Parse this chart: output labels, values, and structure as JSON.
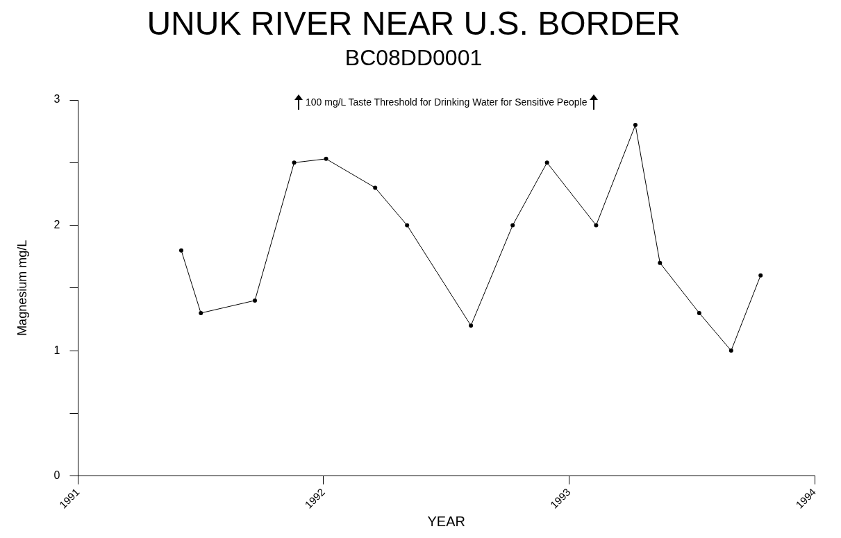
{
  "chart_data": {
    "type": "line",
    "title": "UNUK RIVER NEAR U.S. BORDER",
    "subtitle": "BC08DD0001",
    "xlabel": "YEAR",
    "ylabel": "Magnesium mg/L",
    "annotations": [
      "100 mg/L Taste Threshold for Drinking Water for Sensitive People"
    ],
    "x": [
      1991.42,
      1991.5,
      1991.72,
      1991.88,
      1992.01,
      1992.21,
      1992.34,
      1992.6,
      1992.77,
      1992.91,
      1993.11,
      1993.27,
      1993.37,
      1993.53,
      1993.66,
      1993.78
    ],
    "series": [
      {
        "color": "#000000",
        "values": [
          1.8,
          1.3,
          1.4,
          2.5,
          2.53,
          2.3,
          2.0,
          1.2,
          2.0,
          2.5,
          2.0,
          2.8,
          1.7,
          1.3,
          1.0,
          1.6
        ]
      }
    ],
    "xlim": [
      1991,
      1994
    ],
    "xticks": [
      1991,
      1992,
      1993,
      1994
    ],
    "ylim": [
      0,
      3
    ],
    "yticks": [
      0,
      {
        "value": 0.5,
        "label": null
      },
      1,
      {
        "value": 1.5,
        "label": null
      },
      2,
      {
        "value": 2.5,
        "label": null
      },
      3
    ],
    "grid": false,
    "legend": false,
    "marker": "circle",
    "line_style": "solid"
  }
}
